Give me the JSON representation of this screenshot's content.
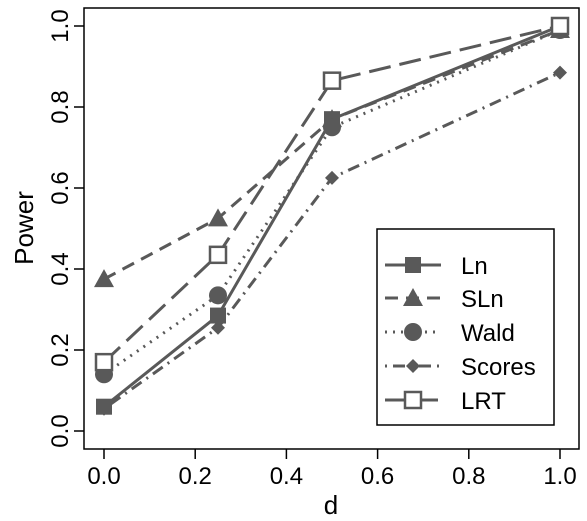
{
  "chart_data": {
    "type": "line",
    "title": "",
    "xlabel": "d",
    "ylabel": "Power",
    "xlim": [
      0.0,
      1.0
    ],
    "ylim": [
      0.0,
      1.0
    ],
    "x_ticks": [
      "0.0",
      "0.2",
      "0.4",
      "0.6",
      "0.8",
      "1.0"
    ],
    "y_ticks": [
      "0.0",
      "0.2",
      "0.4",
      "0.6",
      "0.8",
      "1.0"
    ],
    "grid": false,
    "legend_position": "bottom-right",
    "x": [
      0.0,
      0.25,
      0.5,
      1.0
    ],
    "series": [
      {
        "name": "Ln",
        "values": [
          0.06,
          0.285,
          0.77,
          1.0
        ],
        "marker": "filled-square",
        "line_style": "solid"
      },
      {
        "name": "SLn",
        "values": [
          0.375,
          0.525,
          0.77,
          0.99
        ],
        "marker": "filled-triangle",
        "line_style": "dashed"
      },
      {
        "name": "Wald",
        "values": [
          0.14,
          0.335,
          0.75,
          0.99
        ],
        "marker": "filled-circle",
        "line_style": "dotted"
      },
      {
        "name": "Scores",
        "values": [
          0.055,
          0.255,
          0.625,
          0.885
        ],
        "marker": "filled-diamond",
        "line_style": "dot-dash"
      },
      {
        "name": "LRT",
        "values": [
          0.17,
          0.435,
          0.865,
          1.0
        ],
        "marker": "open-square",
        "line_style": "long-dash"
      }
    ],
    "series_color": "#595959"
  }
}
